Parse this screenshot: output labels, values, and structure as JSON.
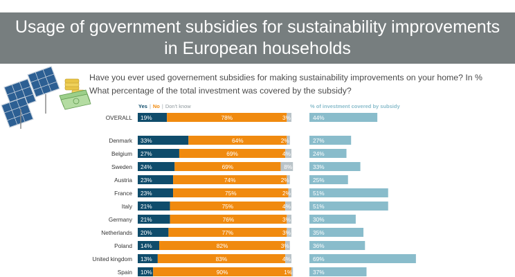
{
  "header": {
    "title_line1": "Usage of government subsidies for sustainability improvements",
    "title_line2": "in European households"
  },
  "question1": "Have you ever used governement subsidies for making sustainability improvements on your home? In %",
  "question2": "What percentage of the total investment was covered by the subsidy?",
  "colors": {
    "yes": "#0f4c6b",
    "no": "#f08a0f",
    "dont_know": "#b9c3c8",
    "covered": "#89bccb",
    "banner": "#777e7f"
  },
  "chart_data": [
    {
      "type": "bar",
      "stacked": true,
      "orientation": "horizontal",
      "legend": [
        "Yes",
        "No",
        "Don't know"
      ],
      "legend_separator": "|",
      "categories": [
        "OVERALL",
        "Denmark",
        "Belgium",
        "Sweden",
        "Austria",
        "France",
        "Italy",
        "Germany",
        "Netherlands",
        "Poland",
        "United kingdom",
        "Spain"
      ],
      "series": [
        {
          "name": "Yes",
          "values": [
            19,
            33,
            27,
            24,
            23,
            23,
            21,
            21,
            20,
            14,
            13,
            10
          ]
        },
        {
          "name": "No",
          "values": [
            78,
            64,
            69,
            69,
            74,
            75,
            75,
            76,
            77,
            82,
            83,
            90
          ]
        },
        {
          "name": "Don't know",
          "values": [
            3,
            2,
            4,
            8,
            2,
            2,
            4,
            3,
            3,
            3,
            4,
            1
          ]
        }
      ],
      "unit": "%",
      "xlim": [
        0,
        100
      ]
    },
    {
      "type": "bar",
      "orientation": "horizontal",
      "title": "% of investment covered by subsidy",
      "categories": [
        "OVERALL",
        "Denmark",
        "Belgium",
        "Sweden",
        "Austria",
        "France",
        "Italy",
        "Germany",
        "Netherlands",
        "Poland",
        "United kingdom",
        "Spain"
      ],
      "values": [
        44,
        27,
        24,
        33,
        25,
        51,
        51,
        30,
        35,
        36,
        69,
        37
      ],
      "unit": "%",
      "xlim": [
        0,
        100
      ]
    }
  ]
}
